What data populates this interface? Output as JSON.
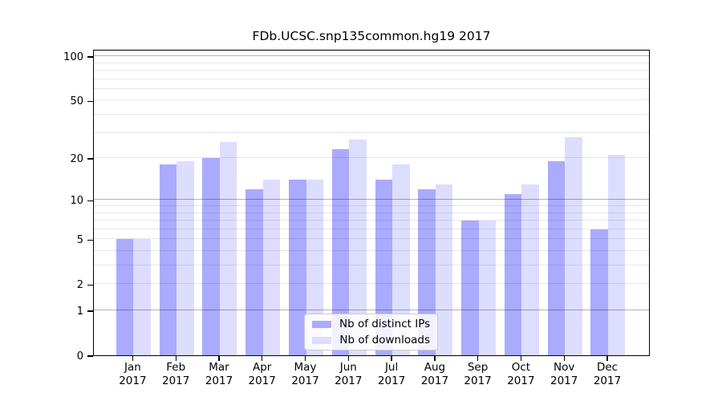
{
  "title": "FDb.UCSC.snp135common.hg19 2017",
  "colors": {
    "distinct_ips": "#aaaaff",
    "downloads": "#ddddff",
    "grid_major": "rgba(0,0,0,0.30)",
    "grid_minor": "rgba(0,0,0,0.09)",
    "axis": "#000000"
  },
  "legend": {
    "items": [
      {
        "label": "Nb of distinct IPs"
      },
      {
        "label": "Nb of downloads"
      }
    ]
  },
  "y_axis": {
    "tick_labels": [
      "0",
      "1",
      "2",
      "5",
      "10",
      "20",
      "50",
      "100"
    ]
  },
  "x_axis": {
    "months": [
      "Jan",
      "Feb",
      "Mar",
      "Apr",
      "May",
      "Jun",
      "Jul",
      "Aug",
      "Sep",
      "Oct",
      "Nov",
      "Dec"
    ],
    "year": "2017"
  },
  "chart_data": {
    "type": "bar",
    "title": "FDb.UCSC.snp135common.hg19 2017",
    "categories": [
      "Jan 2017",
      "Feb 2017",
      "Mar 2017",
      "Apr 2017",
      "May 2017",
      "Jun 2017",
      "Jul 2017",
      "Aug 2017",
      "Sep 2017",
      "Oct 2017",
      "Nov 2017",
      "Dec 2017"
    ],
    "series": [
      {
        "name": "Nb of distinct IPs",
        "values": [
          5,
          18,
          20,
          12,
          14,
          23,
          14,
          12,
          7,
          11,
          19,
          6
        ]
      },
      {
        "name": "Nb of downloads",
        "values": [
          5,
          19,
          26,
          14,
          14,
          27,
          18,
          13,
          7,
          13,
          28,
          21
        ]
      }
    ],
    "y_scale": "log10(1+x)",
    "y_ticks": [
      0,
      1,
      2,
      5,
      10,
      20,
      50,
      100
    ],
    "y_gridlines_major": [
      1,
      10,
      100
    ],
    "y_gridlines_minor": [
      2,
      3,
      4,
      5,
      6,
      7,
      8,
      9,
      20,
      30,
      40,
      50,
      60,
      70,
      80,
      90
    ],
    "ylim": [
      0,
      112
    ],
    "xlabel": "",
    "ylabel": "",
    "grid": "on",
    "legend_position": "bottom-center"
  }
}
